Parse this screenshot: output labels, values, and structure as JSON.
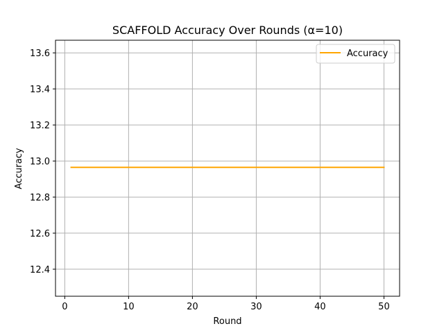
{
  "chart_data": {
    "type": "line",
    "title": "SCAFFOLD Accuracy Over Rounds (α=10)",
    "xlabel": "Round",
    "ylabel": "Accuracy",
    "xlim": [
      -1.45,
      52.45
    ],
    "ylim": [
      12.25,
      13.67
    ],
    "xticks": [
      0,
      10,
      20,
      30,
      40,
      50
    ],
    "yticks": [
      12.4,
      12.6,
      12.8,
      13.0,
      13.2,
      13.4,
      13.6
    ],
    "ytick_labels": [
      "12.4",
      "12.6",
      "12.8",
      "13.0",
      "13.2",
      "13.4",
      "13.6"
    ],
    "grid": true,
    "legend": {
      "position": "top-right"
    },
    "series": [
      {
        "name": "Accuracy",
        "color": "#ffa500",
        "x": [
          1,
          50
        ],
        "y": [
          12.965,
          12.965
        ]
      }
    ]
  }
}
